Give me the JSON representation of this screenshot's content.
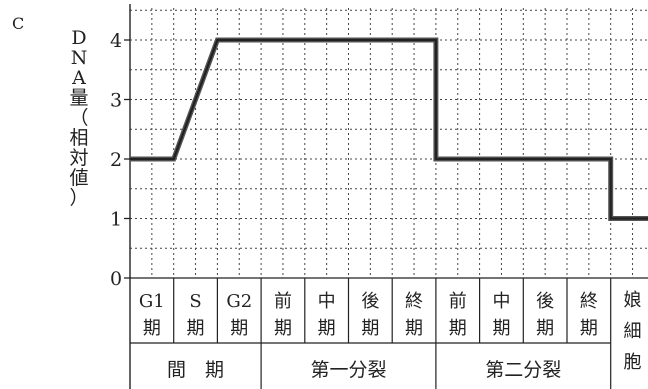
{
  "panel_label": "C",
  "chart_data": {
    "type": "line",
    "ylabel_chars": [
      "D",
      "N",
      "A",
      "量",
      "（",
      "相",
      "対",
      "値",
      "）"
    ],
    "y_ticks": [
      "0",
      "1",
      "2",
      "3",
      "4"
    ],
    "ylim": [
      0,
      4.5
    ],
    "grid": true,
    "phases": [
      {
        "top": "G1",
        "bottom": "期"
      },
      {
        "top": "S",
        "bottom": "期"
      },
      {
        "top": "G2",
        "bottom": "期"
      },
      {
        "top": "前",
        "bottom": "期"
      },
      {
        "top": "中",
        "bottom": "期"
      },
      {
        "top": "後",
        "bottom": "期"
      },
      {
        "top": "終",
        "bottom": "期"
      },
      {
        "top": "前",
        "bottom": "期"
      },
      {
        "top": "中",
        "bottom": "期"
      },
      {
        "top": "後",
        "bottom": "期"
      },
      {
        "top": "終",
        "bottom": "期"
      },
      {
        "top": "娘",
        "middle": "細",
        "bottom": "胞"
      }
    ],
    "groups": [
      {
        "label": "間　期",
        "span": [
          0,
          3
        ]
      },
      {
        "label": "第一分裂",
        "span": [
          3,
          7
        ]
      },
      {
        "label": "第二分裂",
        "span": [
          7,
          11
        ]
      }
    ],
    "points": [
      [
        0,
        2
      ],
      [
        1,
        2
      ],
      [
        2,
        4
      ],
      [
        7,
        4
      ],
      [
        7,
        2
      ],
      [
        11,
        2
      ],
      [
        11,
        1
      ],
      [
        12,
        1
      ]
    ]
  }
}
